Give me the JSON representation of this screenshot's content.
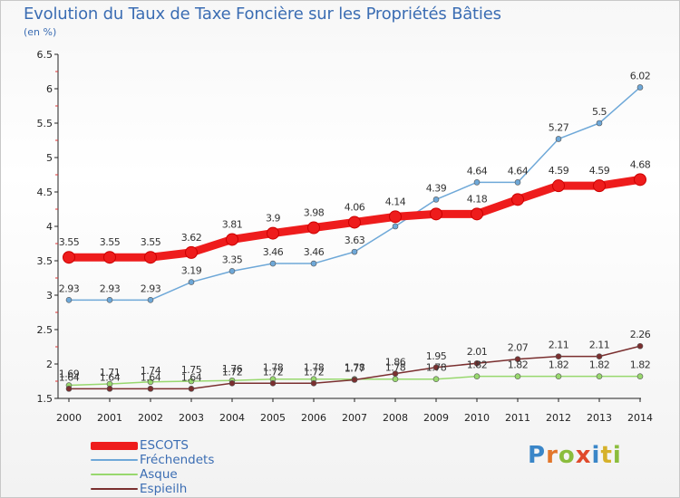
{
  "chart_data": {
    "type": "line",
    "title": "Evolution du Taux de Taxe Foncière sur les Propriétés Bâties",
    "subtitle": "(en %)",
    "x": [
      "2000",
      "2001",
      "2002",
      "2003",
      "2004",
      "2005",
      "2006",
      "2007",
      "2008",
      "2009",
      "2010",
      "2011",
      "2012",
      "2013",
      "2014"
    ],
    "yticks": [
      "1.5",
      "2",
      "2.5",
      "3",
      "3.5",
      "4",
      "4.5",
      "5",
      "5.5",
      "6",
      "6.5"
    ],
    "ylim": [
      1.5,
      6.5
    ],
    "grid": false,
    "legend_position": "bottom-left",
    "series": [
      {
        "name": "ESCOTS",
        "color": "#ee1c1c",
        "values": [
          3.55,
          3.55,
          3.55,
          3.62,
          3.81,
          3.9,
          3.98,
          4.06,
          4.14,
          4.18,
          4.18,
          4.39,
          4.59,
          4.59,
          4.68
        ],
        "labels": [
          "3.55",
          "3.55",
          "3.55",
          "3.62",
          "3.81",
          "3.9",
          "3.98",
          "4.06",
          "4.14",
          "",
          "4.18",
          "",
          "4.59",
          "4.59",
          "4.68"
        ]
      },
      {
        "name": "Fréchendets",
        "color": "#6ea8d8",
        "values": [
          2.93,
          2.93,
          2.93,
          3.19,
          3.35,
          3.46,
          3.46,
          3.63,
          4.0,
          4.39,
          4.64,
          4.64,
          5.27,
          5.5,
          6.02
        ],
        "labels": [
          "2.93",
          "2.93",
          "2.93",
          "3.19",
          "3.35",
          "3.46",
          "3.46",
          "3.63",
          "",
          "4.39",
          "4.64",
          "4.64",
          "5.27",
          "5.5",
          "6.02"
        ]
      },
      {
        "name": "Asque",
        "color": "#98d86e",
        "values": [
          1.69,
          1.71,
          1.74,
          1.75,
          1.76,
          1.78,
          1.78,
          1.78,
          1.78,
          1.78,
          1.82,
          1.82,
          1.82,
          1.82,
          1.82
        ],
        "labels": [
          "1.69",
          "1.71",
          "1.74",
          "1.75",
          "1.76",
          "1.78",
          "1.78",
          "1.78",
          "1.78",
          "1.78",
          "1.82",
          "1.82",
          "1.82",
          "1.82",
          "1.82"
        ]
      },
      {
        "name": "Espieilh",
        "color": "#7a2f2f",
        "values": [
          1.64,
          1.64,
          1.64,
          1.64,
          1.72,
          1.72,
          1.72,
          1.77,
          1.86,
          1.95,
          2.01,
          2.07,
          2.11,
          2.11,
          2.26
        ],
        "labels": [
          "1.64",
          "1.64",
          "1.64",
          "1.64",
          "1.72",
          "1.72",
          "1.72",
          "1.77",
          "1.86",
          "1.95",
          "2.01",
          "2.07",
          "2.11",
          "2.11",
          "2.26"
        ]
      }
    ]
  },
  "branding": {
    "logo_letters": [
      "P",
      "r",
      "o",
      "x",
      "i",
      "t",
      "i"
    ]
  }
}
